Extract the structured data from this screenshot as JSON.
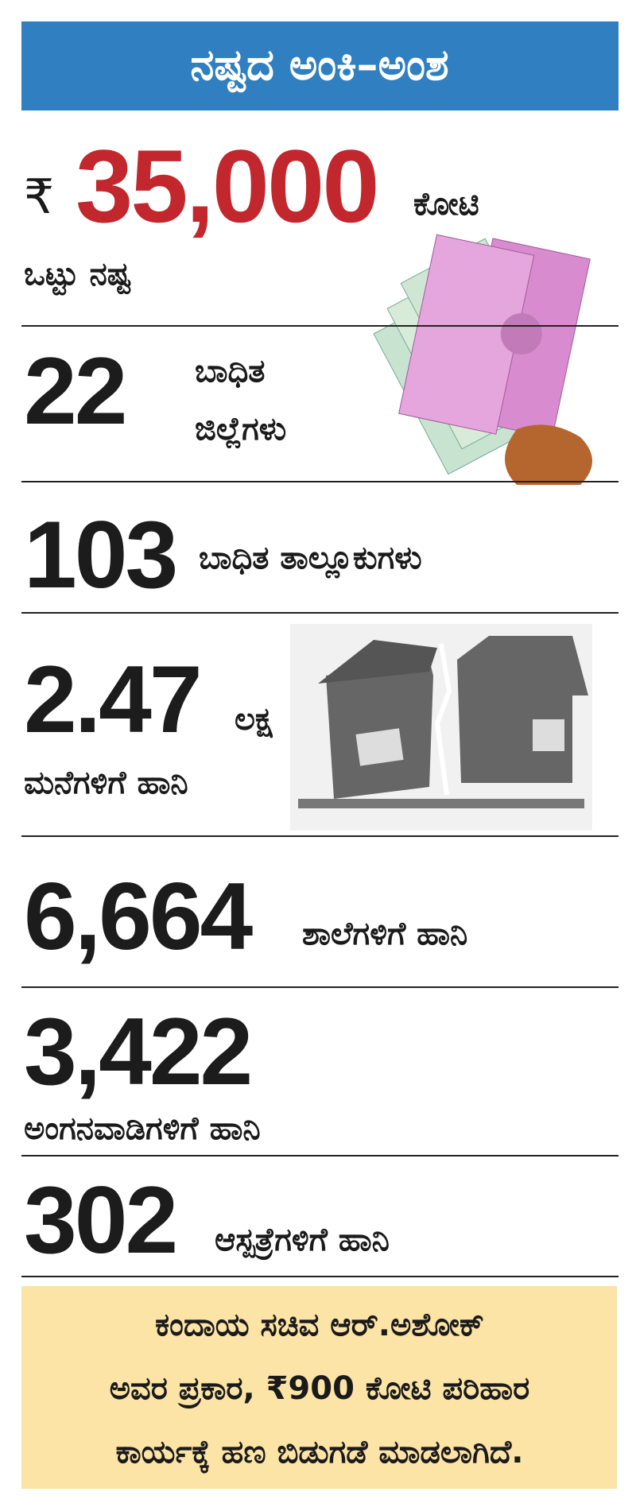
{
  "header": {
    "title": "ನಷ್ಟದ ಅಂಕಿ–ಅಂಶ"
  },
  "items": [
    {
      "prefix": "₹",
      "number": "35,000",
      "unit": "ಕೋಟಿ",
      "label": "ಒಟ್ಟು ನಷ್ಟ"
    },
    {
      "number": "22",
      "label_lines": [
        "ಬಾಧಿತ",
        "ಜಿಲ್ಲೆಗಳು"
      ]
    },
    {
      "number": "103",
      "label": "ಬಾಧಿತ ತಾಲ್ಲೂಕುಗಳು"
    },
    {
      "number": "2.47",
      "unit": "ಲಕ್ಷ",
      "label": "ಮನೆಗಳಿಗೆ ಹಾನಿ"
    },
    {
      "number": "6,664",
      "label": "ಶಾಲೆಗಳಿಗೆ ಹಾನಿ"
    },
    {
      "number": "3,422",
      "label": "ಅಂಗನವಾಡಿಗಳಿಗೆ ಹಾನಿ"
    },
    {
      "number": "302",
      "label": "ಆಸ್ಪತ್ರೆಗಳಿಗೆ ಹಾನಿ"
    }
  ],
  "note": {
    "lines": [
      "ಕಂದಾಯ ಸಚಿವ ಆರ್.ಅಶೋಕ್",
      "ಅವರ ಪ್ರಕಾರ, ₹900 ಕೋಟಿ ಪರಿಹಾರ",
      "ಕಾರ್ಯಕ್ಕೆ ಹಣ ಬಿಡುಗಡೆ ಮಾಡಲಾಗಿದೆ."
    ]
  }
}
